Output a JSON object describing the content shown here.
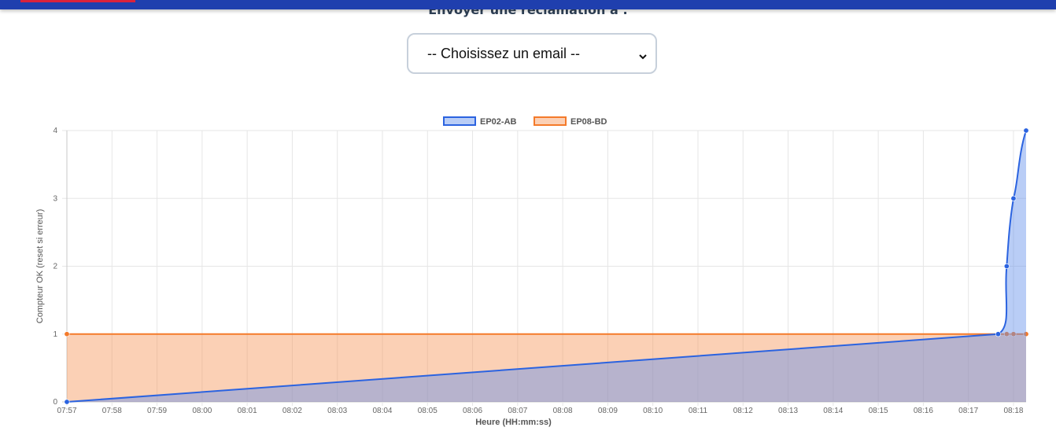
{
  "form": {
    "title": "Envoyer une réclamation à :",
    "select": {
      "selected_label": "-- Choisissez un email --"
    }
  },
  "icons": {
    "select_arrow": "chevron-down-icon"
  },
  "colors": {
    "header_bar": "#1f3fae",
    "header_accent": "#d9233c",
    "series_ep02": "#2b63e0",
    "series_ep08": "#f47a2a"
  },
  "chart_data": {
    "type": "line",
    "filled": true,
    "grid": true,
    "legend_position": "top-center",
    "xlabel": "Heure (HH:mm:ss)",
    "ylabel": "Compteur OK (reset si erreur)",
    "ylim": [
      0,
      4
    ],
    "y_ticks": [
      "0",
      "1",
      "2",
      "3",
      "4"
    ],
    "x_ticks": [
      "07:57",
      "07:58",
      "07:59",
      "08:00",
      "08:01",
      "08:02",
      "08:03",
      "08:04",
      "08:05",
      "08:06",
      "08:07",
      "08:08",
      "08:09",
      "08:10",
      "08:11",
      "08:12",
      "08:13",
      "08:14",
      "08:15",
      "08:16",
      "08:17",
      "08:18"
    ],
    "x_tick_minutes": [
      0,
      1,
      2,
      3,
      4,
      5,
      6,
      7,
      8,
      9,
      10,
      11,
      12,
      13,
      14,
      15,
      16,
      17,
      18,
      19,
      20,
      21
    ],
    "xlim_minutes": [
      0,
      21.28
    ],
    "series": [
      {
        "name": "EP02-AB",
        "color": "#2b63e0",
        "fill": "rgba(100,145,235,0.45)",
        "points": [
          [
            0,
            0
          ],
          [
            20.66,
            1
          ],
          [
            20.85,
            2
          ],
          [
            21.0,
            3
          ],
          [
            21.28,
            4
          ]
        ]
      },
      {
        "name": "EP08-BD",
        "color": "#f47a2a",
        "fill": "rgba(247,150,90,0.45)",
        "points": [
          [
            0,
            1
          ],
          [
            20.66,
            1
          ],
          [
            20.85,
            1
          ],
          [
            21.0,
            1
          ],
          [
            21.28,
            1
          ]
        ]
      }
    ]
  }
}
